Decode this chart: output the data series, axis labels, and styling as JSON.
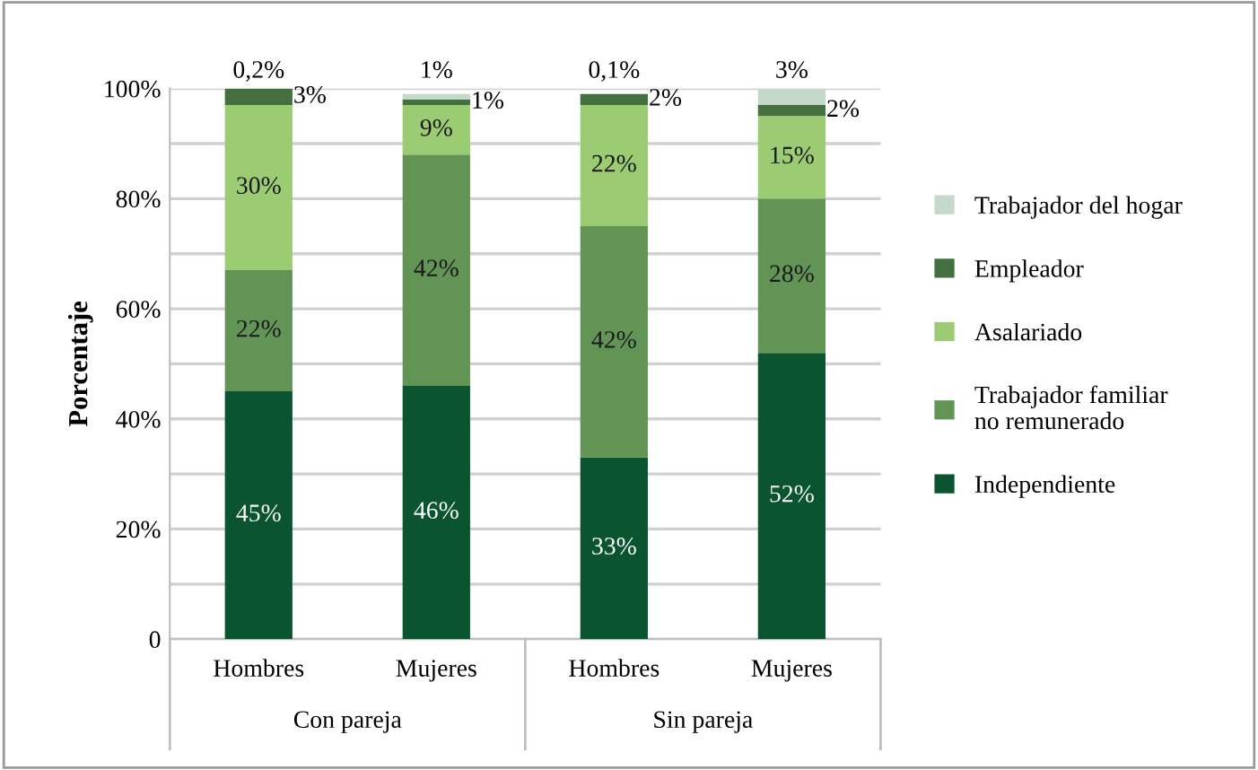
{
  "chart_data": {
    "type": "bar",
    "stacked": true,
    "ylabel": "Porcentaje",
    "categories": [
      "Hombres",
      "Mujeres",
      "Hombres",
      "Mujeres"
    ],
    "annotations": [
      "Con pareja",
      "Sin pareja"
    ],
    "series": [
      {
        "name": "Independiente",
        "color": "#0b5430",
        "values": [
          45,
          46,
          33,
          52
        ],
        "value_labels": [
          "45%",
          "46%",
          "33%",
          "52%"
        ]
      },
      {
        "name": "Trabajador familiar no remunerado",
        "color": "#629555",
        "values": [
          22,
          42,
          42,
          28
        ],
        "value_labels": [
          "22%",
          "42%",
          "42%",
          "28%"
        ]
      },
      {
        "name": "Asalariado",
        "color": "#9bcb72",
        "values": [
          30,
          9,
          22,
          15
        ],
        "value_labels": [
          "30%",
          "9%",
          "22%",
          "15%"
        ]
      },
      {
        "name": "Empleador",
        "color": "#44703f",
        "values": [
          3,
          1,
          2,
          2
        ],
        "value_labels": [
          "3%",
          "1%",
          "2%",
          "2%"
        ]
      },
      {
        "name": "Trabajador del hogar",
        "color": "#c5d9cb",
        "values": [
          0.2,
          1,
          0.1,
          3
        ],
        "value_labels": [
          "0,2%",
          "1%",
          "0,1%",
          "3%"
        ]
      }
    ],
    "ylim": [
      0,
      100
    ],
    "yticks": [
      0,
      {
        "value": 10,
        "label": null
      },
      {
        "value": 20,
        "label": "20%"
      },
      {
        "value": 30,
        "label": null
      },
      {
        "value": 40,
        "label": "40%"
      },
      {
        "value": 50,
        "label": null
      },
      {
        "value": 60,
        "label": "60%"
      },
      {
        "value": 70,
        "label": null
      },
      {
        "value": 80,
        "label": "80%"
      },
      {
        "value": 90,
        "label": null
      },
      {
        "value": 100,
        "label": "100%"
      }
    ],
    "grid": "y",
    "legend": "right"
  }
}
